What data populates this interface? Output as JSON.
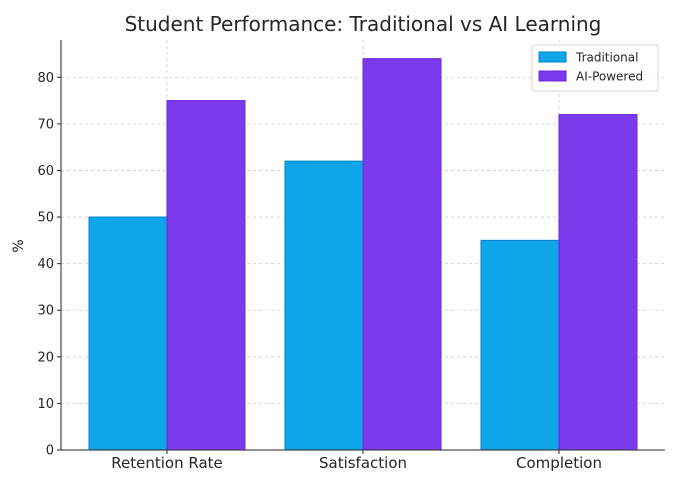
{
  "chart_data": {
    "type": "bar",
    "title": "Student Performance: Traditional vs AI Learning",
    "xlabel": "",
    "ylabel": "%",
    "categories": [
      "Retention Rate",
      "Satisfaction",
      "Completion"
    ],
    "series": [
      {
        "name": "Traditional",
        "values": [
          50,
          62,
          45
        ],
        "color": "#0ea5e9",
        "edge_color": "#0284c7"
      },
      {
        "name": "AI-Powered",
        "values": [
          75,
          84,
          72
        ],
        "color": "#7c3aed",
        "edge_color": "#6d28d9"
      }
    ],
    "ylim": [
      0,
      88
    ],
    "yticks": [
      0,
      10,
      20,
      30,
      40,
      50,
      60,
      70,
      80
    ],
    "grid": true,
    "legend_position": "top-right"
  }
}
